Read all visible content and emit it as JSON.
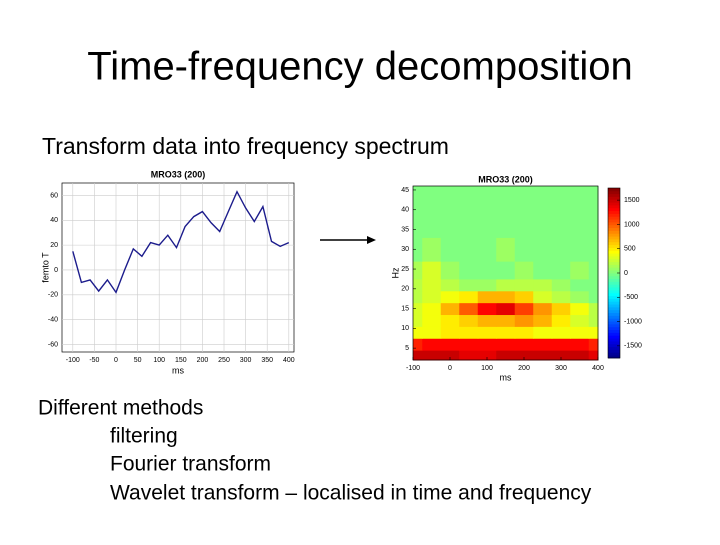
{
  "title": "Time-frequency decomposition",
  "subtitle": "Transform data into frequency spectrum",
  "methods": {
    "heading": "Different methods",
    "items": [
      "filtering",
      "Fourier transform",
      "Wavelet transform – localised in time and frequency"
    ]
  },
  "chart_data": [
    {
      "type": "line",
      "title": "MRO33 (200)",
      "x_label": "ms",
      "y_label": "femto T",
      "x": [
        -100,
        -80,
        -60,
        -40,
        -20,
        0,
        20,
        40,
        60,
        80,
        100,
        120,
        140,
        160,
        180,
        200,
        220,
        240,
        260,
        280,
        300,
        320,
        340,
        360,
        380,
        400
      ],
      "values": [
        15,
        -10,
        -8,
        -17,
        -8,
        -18,
        0,
        17,
        11,
        22,
        20,
        28,
        18,
        35,
        43,
        47,
        38,
        31,
        47,
        63,
        50,
        39,
        51,
        23,
        19,
        22
      ],
      "color": "#1c1c8c",
      "xlim": [
        -125,
        412
      ],
      "xticks": [
        -100,
        -50,
        0,
        50,
        100,
        150,
        200,
        250,
        300,
        350,
        400
      ],
      "ylim": [
        -66,
        70
      ],
      "yticks": [
        -60,
        -40,
        -20,
        0,
        20,
        40,
        60
      ],
      "grid": true
    },
    {
      "type": "heatmap",
      "title": "MRO33 (200)",
      "x_label": "ms",
      "y_label": "Hz",
      "x": [
        -100,
        -50,
        0,
        50,
        100,
        150,
        200,
        250,
        300,
        350,
        400
      ],
      "y": [
        3,
        6,
        9,
        12,
        15,
        18,
        21,
        24,
        30,
        36,
        42
      ],
      "z": [
        [
          1500,
          1500,
          1500,
          1400,
          1400,
          1500,
          1500,
          1500,
          1500,
          1500,
          1400
        ],
        [
          1200,
          1300,
          1300,
          1300,
          1300,
          1300,
          1300,
          1300,
          1300,
          1300,
          1200
        ],
        [
          400,
          400,
          500,
          500,
          500,
          500,
          500,
          400,
          400,
          400,
          400
        ],
        [
          300,
          400,
          500,
          600,
          700,
          700,
          800,
          700,
          500,
          300,
          200
        ],
        [
          300,
          400,
          700,
          1000,
          1300,
          1400,
          1100,
          800,
          600,
          400,
          200
        ],
        [
          200,
          300,
          400,
          500,
          700,
          700,
          600,
          300,
          200,
          100,
          0
        ],
        [
          200,
          300,
          200,
          100,
          100,
          200,
          200,
          200,
          100,
          0,
          0
        ],
        [
          150,
          300,
          100,
          0,
          0,
          0,
          100,
          0,
          0,
          100,
          0
        ],
        [
          0,
          100,
          0,
          0,
          0,
          100,
          0,
          0,
          0,
          0,
          0
        ],
        [
          0,
          0,
          0,
          0,
          0,
          0,
          0,
          0,
          0,
          0,
          0
        ],
        [
          0,
          0,
          0,
          0,
          0,
          0,
          0,
          0,
          0,
          0,
          0
        ]
      ],
      "colormap": "jet",
      "clim": [
        -1750,
        1750
      ],
      "cticks": [
        -1500,
        -1000,
        -500,
        0,
        500,
        1000,
        1500
      ],
      "xlim": [
        -100,
        400
      ],
      "xticks": [
        -100,
        0,
        100,
        200,
        300,
        400
      ],
      "ylim": [
        2,
        46
      ],
      "yticks": [
        5,
        10,
        15,
        20,
        25,
        30,
        35,
        40,
        45
      ]
    }
  ]
}
